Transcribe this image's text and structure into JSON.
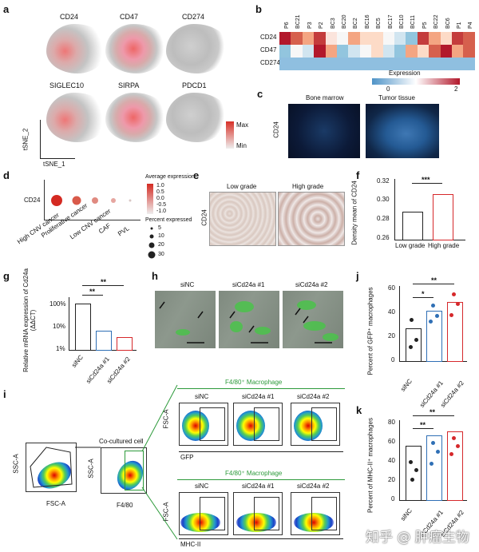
{
  "panels": {
    "a": "a",
    "b": "b",
    "c": "c",
    "d": "d",
    "e": "e",
    "f": "f",
    "g": "g",
    "h": "h",
    "i": "i",
    "j": "j",
    "k": "k"
  },
  "panel_a": {
    "genes": [
      "CD24",
      "CD47",
      "CD274",
      "SIGLEC10",
      "SIRPA",
      "PDCD1"
    ],
    "xlabel": "tSNE_1",
    "ylabel": "tSNE_2",
    "legend_max": "Max",
    "legend_min": "Min"
  },
  "panel_b": {
    "columns": [
      "P6",
      "BC21",
      "P3",
      "P2",
      "BC3",
      "BC20",
      "BC2",
      "BC16",
      "BC5",
      "BC17",
      "BC10",
      "BC11",
      "P5",
      "BC22",
      "BC6",
      "P1",
      "P4"
    ],
    "rows": [
      "CD24",
      "CD47",
      "CD274"
    ],
    "legend_title": "Expression",
    "legend_min": "0",
    "legend_max": "2"
  },
  "panel_c": {
    "left_title": "Bone marrow",
    "right_title": "Tumor tissue",
    "ylabel": "CD24"
  },
  "panel_d": {
    "gene": "CD24",
    "categories": [
      "High CNV cancer",
      "Proliferative cancer",
      "Low CNV cancer",
      "CAF",
      "PVL"
    ],
    "avg_title": "Average expression",
    "avg_ticks": [
      "1.0",
      "0.5",
      "0.0",
      "-0.5",
      "-1.0"
    ],
    "pct_title": "Percent expressed",
    "pct_ticks": [
      "5",
      "10",
      "20",
      "30"
    ]
  },
  "panel_e": {
    "left_title": "Low grade",
    "right_title": "High grade",
    "ylabel": "CD24"
  },
  "panel_f": {
    "ylabel": "Density mean of CD24",
    "yticks": [
      "0.32",
      "0.30",
      "0.28",
      "0.26"
    ],
    "categories": [
      "Low grade",
      "High grade"
    ],
    "sig": "***"
  },
  "panel_g": {
    "ylabel": "Relative mRNA expression of Cd24a (ΔΔCT)",
    "yticks": [
      "100%",
      "10%",
      "1%"
    ],
    "categories": [
      "siNC",
      "siCd24a #1",
      "siCd24a #2"
    ],
    "sig1": "**",
    "sig2": "**"
  },
  "panel_h": {
    "titles": [
      "siNC",
      "siCd24a #1",
      "siCd24a #2"
    ]
  },
  "panel_i": {
    "top_group": "F4/80⁺ Macrophage",
    "bottom_group": "F4/80⁺ Macrophage",
    "cocultured": "Co-cultured cell",
    "titles": [
      "siNC",
      "siCd24a #1",
      "siCd24a #2"
    ],
    "ssc": "SSC-A",
    "fsc": "FSC-A",
    "f480": "F4/80",
    "gfp": "GFP",
    "mhc": "MHC-II"
  },
  "panel_j": {
    "ylabel": "Percent of GFP⁺ macrophages",
    "yticks": [
      "60",
      "40",
      "20",
      "0"
    ],
    "categories": [
      "siNC",
      "siCd24a #1",
      "siCd24a #2"
    ],
    "sig1": "*",
    "sig2": "**"
  },
  "panel_k": {
    "ylabel": "Percent of MHC-II⁺ macrophages",
    "yticks": [
      "80",
      "60",
      "40",
      "20",
      "0"
    ],
    "categories": [
      "siNC",
      "siCd24a #1",
      "siCd24a #2"
    ],
    "sig1": "**",
    "sig2": "**"
  },
  "watermark": "知乎 @ 肿瘤生物",
  "colors": {
    "blue": "#2f6fb5",
    "red": "#d6282b",
    "black": "#111111",
    "green": "#2d9a3b"
  }
}
